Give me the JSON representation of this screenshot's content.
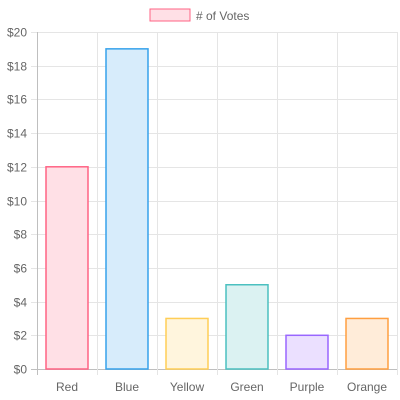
{
  "chart_data": {
    "type": "bar",
    "categories": [
      "Red",
      "Blue",
      "Yellow",
      "Green",
      "Purple",
      "Orange"
    ],
    "series": [
      {
        "name": "# of Votes",
        "values": [
          12,
          19,
          3,
          5,
          2,
          3
        ]
      }
    ],
    "ylim": [
      0,
      20
    ],
    "y_tick_step": 2,
    "y_tick_prefix": "$",
    "grid": true,
    "legend_position": "top",
    "colors": {
      "fill": [
        "#ffe0e6",
        "#d7ecfb",
        "#fff5dd",
        "#dbf2f2",
        "#ebe0ff",
        "#ffecd9"
      ],
      "border": [
        "#ff6384",
        "#36a2eb",
        "#ffce56",
        "#4bc0c0",
        "#9966ff",
        "#ff9f40"
      ],
      "grid": "#e5e5e5",
      "axis_text": "#666666"
    }
  }
}
